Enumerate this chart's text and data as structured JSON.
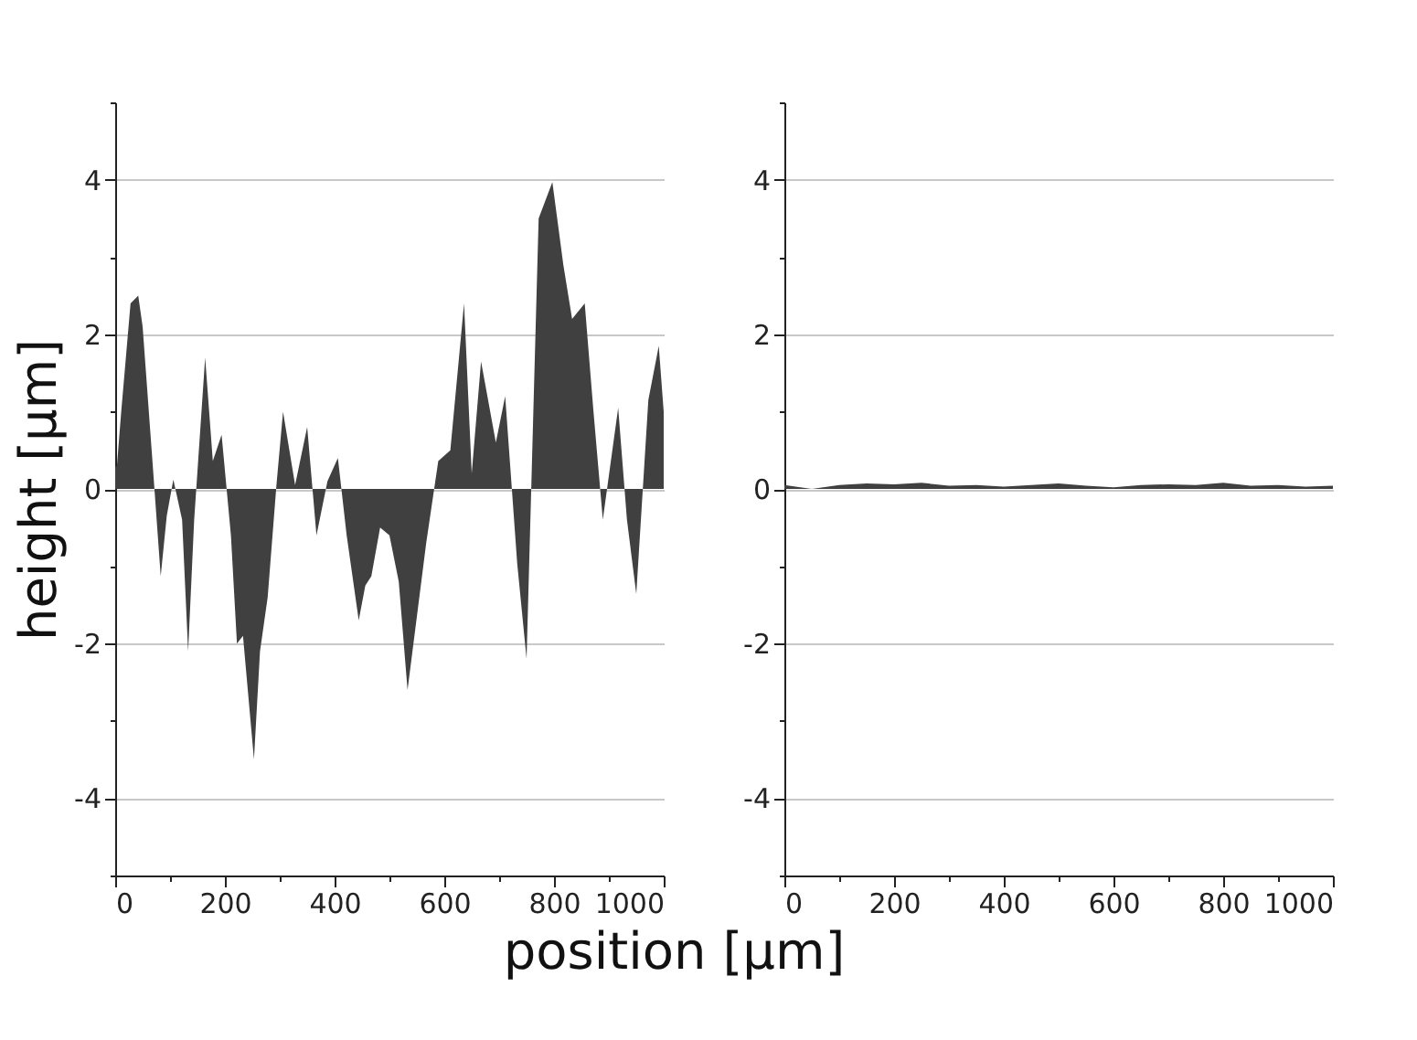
{
  "chart_data": [
    {
      "type": "area",
      "ylabel": "height [µm]",
      "xlabel": "position [µm]",
      "color": "#404040",
      "grid": "y",
      "xlim": [
        0,
        1000
      ],
      "ylim": [
        -5,
        5
      ],
      "xticks": [
        0,
        {
          "value": 100,
          "label": null
        },
        200,
        {
          "value": 300,
          "label": null
        },
        400,
        {
          "value": 500,
          "label": null
        },
        600,
        {
          "value": 700,
          "label": null
        },
        800,
        {
          "value": 900,
          "label": null
        },
        1000
      ],
      "yticks": [
        {
          "value": -5,
          "label": null
        },
        -4,
        {
          "value": -3,
          "label": null
        },
        -2,
        {
          "value": -1,
          "label": null
        },
        0,
        {
          "value": 1,
          "label": null
        },
        2,
        {
          "value": 3,
          "label": null
        },
        4,
        {
          "value": 5,
          "label": null
        }
      ],
      "x": [
        0,
        3,
        11,
        28,
        42,
        50,
        67,
        83,
        94,
        106,
        122,
        133,
        144,
        164,
        178,
        194,
        211,
        222,
        233,
        253,
        264,
        278,
        294,
        306,
        328,
        350,
        367,
        387,
        406,
        422,
        444,
        456,
        467,
        483,
        500,
        517,
        533,
        567,
        589,
        611,
        636,
        650,
        667,
        694,
        711,
        733,
        750,
        772,
        797,
        817,
        833,
        856,
        872,
        889,
        917,
        933,
        950,
        972,
        991,
        1000
      ],
      "values": [
        0.3,
        0.28,
        1.0,
        2.4,
        2.5,
        2.1,
        0.45,
        -1.13,
        -0.35,
        0.12,
        -0.4,
        -2.1,
        -0.4,
        1.7,
        0.36,
        0.7,
        -0.6,
        -2.0,
        -1.9,
        -3.5,
        -2.1,
        -1.4,
        0.05,
        1.0,
        0.05,
        0.8,
        -0.6,
        0.1,
        0.4,
        -0.6,
        -1.7,
        -1.25,
        -1.13,
        -0.5,
        -0.6,
        -1.2,
        -2.6,
        -0.7,
        0.36,
        0.5,
        2.4,
        0.2,
        1.65,
        0.6,
        1.2,
        -0.97,
        -2.2,
        3.5,
        3.97,
        2.9,
        2.2,
        2.4,
        1.0,
        -0.4,
        1.05,
        -0.4,
        -1.36,
        1.15,
        1.85,
        1.0
      ]
    },
    {
      "type": "area",
      "color": "#404040",
      "grid": "y",
      "xlim": [
        0,
        1000
      ],
      "ylim": [
        -5,
        5
      ],
      "xticks": [
        0,
        {
          "value": 100,
          "label": null
        },
        200,
        {
          "value": 300,
          "label": null
        },
        400,
        {
          "value": 500,
          "label": null
        },
        600,
        {
          "value": 700,
          "label": null
        },
        800,
        {
          "value": 900,
          "label": null
        },
        1000
      ],
      "yticks": [
        {
          "value": -5,
          "label": null
        },
        -4,
        {
          "value": -3,
          "label": null
        },
        -2,
        {
          "value": -1,
          "label": null
        },
        0,
        {
          "value": 1,
          "label": null
        },
        2,
        {
          "value": 3,
          "label": null
        },
        4,
        {
          "value": 5,
          "label": null
        }
      ],
      "x": [
        0,
        50,
        100,
        150,
        200,
        250,
        300,
        350,
        400,
        450,
        500,
        550,
        600,
        650,
        700,
        750,
        800,
        850,
        900,
        950,
        1000
      ],
      "values": [
        0.05,
        0.0,
        0.05,
        0.07,
        0.06,
        0.08,
        0.04,
        0.05,
        0.03,
        0.05,
        0.07,
        0.04,
        0.02,
        0.05,
        0.06,
        0.05,
        0.08,
        0.04,
        0.05,
        0.03,
        0.04
      ]
    }
  ]
}
